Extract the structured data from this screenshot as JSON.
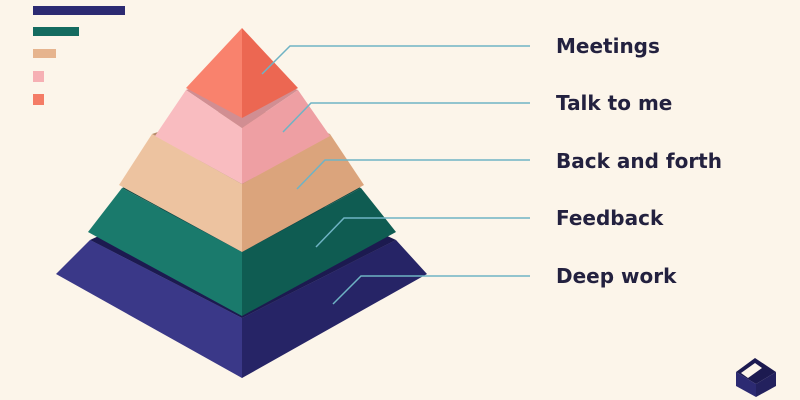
{
  "colors": {
    "background": "#fcf5ea",
    "deep_work": "#2c2a72",
    "feedback": "#146b60",
    "back_and_forth": "#e6b48e",
    "talk_to_me": "#f6b0b4",
    "meetings": "#f47c66",
    "leader_line": "#6fb3c4",
    "text": "#23213f"
  },
  "legend": [
    {
      "color": "#2c2a72",
      "icon": "navy-bar"
    },
    {
      "color": "#146b60",
      "icon": "green-bar"
    },
    {
      "color": "#e6b48e",
      "icon": "tan-bar"
    },
    {
      "color": "#f6b0b4",
      "icon": "pink-square"
    },
    {
      "color": "#f47c66",
      "icon": "coral-square"
    }
  ],
  "layers": [
    {
      "id": "meetings",
      "label": "Meetings"
    },
    {
      "id": "talk-to-me",
      "label": "Talk to me"
    },
    {
      "id": "back-and-forth",
      "label": "Back and forth"
    },
    {
      "id": "feedback",
      "label": "Feedback"
    },
    {
      "id": "deep-work",
      "label": "Deep work"
    }
  ],
  "logo": {
    "icon": "cube-logo-icon"
  }
}
